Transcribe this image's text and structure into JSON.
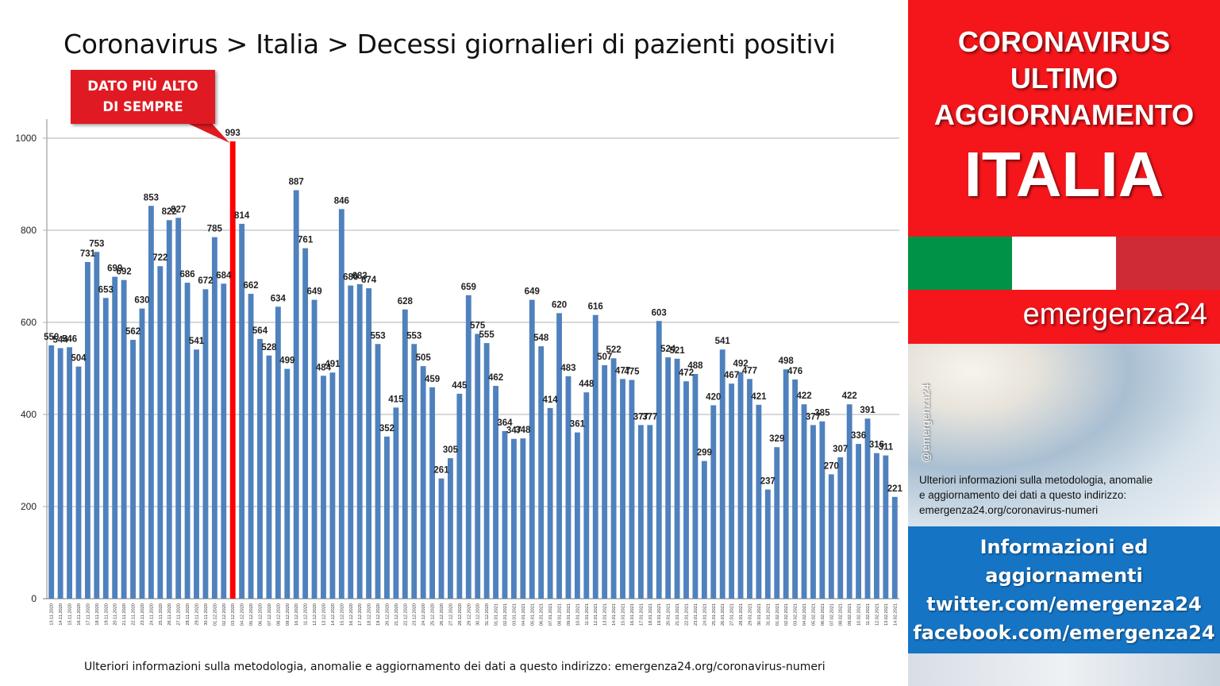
{
  "title": "Coronavirus > Italia > Decessi giornalieri di pazienti positivi",
  "callout": {
    "line1": "DATO PIÙ ALTO",
    "line2": "DI SEMPRE"
  },
  "footnote": "Ulteriori informazioni sulla metodologia, anomalie e aggiornamento dei dati a questo indirizzo: emergenza24.org/coronavirus-numeri",
  "panel": {
    "heading_lines": [
      "CORONAVIRUS",
      "ULTIMO",
      "AGGIORNAMENTO",
      "ITALIA"
    ],
    "brand": "emergenza24",
    "handle": "@emergenza24",
    "note_lines": [
      "Ulteriori informazioni sulla metodologia, anomalie",
      "e aggiornamento dei dati a questo indirizzo:",
      "emergenza24.org/coronavirus-numeri"
    ],
    "info_lines": [
      "Informazioni ed",
      "aggiornamenti",
      "twitter.com/emergenza24",
      "facebook.com/emergenza24"
    ],
    "flag_colors": [
      "#009246",
      "#ffffff",
      "#ce2b37"
    ],
    "accent_red": "#f5161b",
    "accent_blue": "#1574c4"
  },
  "chart_data": {
    "type": "bar",
    "title": "Coronavirus > Italia > Decessi giornalieri di pazienti positivi",
    "xlabel": "",
    "ylabel": "",
    "ylim": [
      0,
      1000
    ],
    "yticks": [
      0,
      200,
      400,
      600,
      800,
      1000
    ],
    "grid": true,
    "bar_color": "#4f81bd",
    "highlight_color": "#ff0000",
    "highlight_category": "03.12.2020",
    "categories": [
      "13.11.2020",
      "14.11.2020",
      "15.11.2020",
      "16.11.2020",
      "17.11.2020",
      "18.11.2020",
      "19.11.2020",
      "20.11.2020",
      "21.11.2020",
      "22.11.2020",
      "23.11.2020",
      "24.11.2020",
      "25.11.2020",
      "26.11.2020",
      "27.11.2020",
      "28.11.2020",
      "29.11.2020",
      "30.11.2020",
      "01.12.2020",
      "02.12.2020",
      "03.12.2020",
      "04.12.2020",
      "05.12.2020",
      "06.12.2020",
      "07.12.2020",
      "08.12.2020",
      "09.12.2020",
      "10.12.2020",
      "11.12.2020",
      "12.12.2020",
      "13.12.2020",
      "14.12.2020",
      "15.12.2020",
      "16.12.2020",
      "17.12.2020",
      "18.12.2020",
      "19.12.2020",
      "20.12.2020",
      "21.12.2020",
      "22.12.2020",
      "23.12.2020",
      "24.12.2020",
      "25.12.2020",
      "26.12.2020",
      "27.12.2020",
      "28.12.2020",
      "29.12.2020",
      "30.12.2020",
      "31.12.2020",
      "01.01.2021",
      "02.01.2021",
      "03.01.2021",
      "04.01.2021",
      "05.01.2021",
      "06.01.2021",
      "07.01.2021",
      "08.01.2021",
      "09.01.2021",
      "10.01.2021",
      "11.01.2021",
      "12.01.2021",
      "13.01.2021",
      "14.01.2021",
      "15.01.2021",
      "16.01.2021",
      "17.01.2021",
      "18.01.2021",
      "19.01.2021",
      "20.01.2021",
      "21.01.2021",
      "22.01.2021",
      "23.01.2021",
      "24.01.2021",
      "25.01.2021",
      "26.01.2021",
      "27.01.2021",
      "28.01.2021",
      "29.01.2021",
      "30.01.2021",
      "31.01.2021",
      "01.02.2021",
      "02.02.2021",
      "03.02.2021",
      "04.02.2021",
      "05.02.2021",
      "06.02.2021",
      "07.02.2021",
      "08.02.2021",
      "09.02.2021",
      "10.02.2021",
      "11.02.2021",
      "12.02.2021",
      "13.02.2021",
      "14.02.2021"
    ],
    "values": [
      550,
      544,
      546,
      504,
      731,
      753,
      653,
      699,
      692,
      562,
      630,
      853,
      722,
      822,
      827,
      686,
      541,
      672,
      785,
      684,
      993,
      814,
      662,
      564,
      528,
      634,
      499,
      887,
      761,
      649,
      484,
      491,
      846,
      680,
      683,
      674,
      553,
      352,
      415,
      628,
      553,
      505,
      459,
      261,
      305,
      445,
      659,
      575,
      555,
      462,
      364,
      347,
      348,
      649,
      548,
      414,
      620,
      483,
      361,
      448,
      616,
      507,
      522,
      477,
      475,
      377,
      377,
      603,
      524,
      521,
      472,
      488,
      299,
      420,
      541,
      467,
      492,
      477,
      421,
      237,
      329,
      498,
      476,
      422,
      377,
      385,
      270,
      307,
      422,
      336,
      391,
      316,
      311,
      221
    ],
    "data_labels": [
      "550",
      "544",
      "546",
      "504",
      "731",
      "753",
      "653",
      "699",
      "692",
      "562",
      "630",
      "853",
      "722",
      "822",
      "827",
      "686",
      "541",
      "672",
      "785",
      "684",
      "993",
      "814",
      "662",
      "564",
      "528",
      "634",
      "499",
      "887",
      "761",
      "649",
      "484",
      "491",
      "846",
      "680",
      "683",
      "674",
      "553",
      "352",
      "415",
      "628",
      "553",
      "505",
      "459",
      "261",
      "305",
      "445",
      "659",
      "575",
      "555",
      "462",
      "364",
      "347",
      "348",
      "649",
      "548",
      "414",
      "620",
      "483",
      "361",
      "448",
      "616",
      "507",
      "522",
      "477",
      "475",
      "377",
      "377",
      "603",
      "524",
      "521",
      "472",
      "488",
      "299",
      "420",
      "541",
      "467",
      "492",
      "477",
      "421",
      "237",
      "329",
      "498",
      "476",
      "422",
      "377",
      "385",
      "270",
      "307",
      "422",
      "336",
      "391",
      "316",
      "311",
      "221"
    ]
  }
}
